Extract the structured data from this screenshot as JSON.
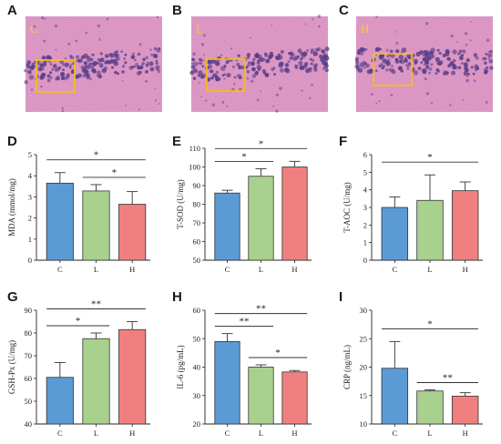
{
  "colors": {
    "C": "#5b9bd5",
    "L": "#a9d18e",
    "H": "#f08080",
    "box": "#f5c400",
    "tissue": "#d98fbe"
  },
  "histology": [
    {
      "panel": "A",
      "label": "C"
    },
    {
      "panel": "B",
      "label": "L"
    },
    {
      "panel": "C",
      "label": "H"
    }
  ],
  "chart_data": [
    {
      "panel": "D",
      "type": "bar",
      "ylabel": "MDA (mmol/mg)",
      "categories": [
        "C",
        "L",
        "H"
      ],
      "values": [
        3.65,
        3.28,
        2.65
      ],
      "errors": [
        0.5,
        0.3,
        0.6
      ],
      "ylim": [
        0,
        5
      ],
      "yticks": [
        0,
        1,
        2,
        3,
        4,
        5
      ],
      "sig": [
        {
          "from": 0,
          "to": 2,
          "text": "*"
        },
        {
          "from": 1,
          "to": 2,
          "text": "*"
        }
      ]
    },
    {
      "panel": "E",
      "type": "bar",
      "ylabel": "T-SOD (U/mg)",
      "categories": [
        "C",
        "L",
        "H"
      ],
      "values": [
        86,
        95,
        100
      ],
      "errors": [
        1.5,
        4,
        3
      ],
      "ylim": [
        50,
        110
      ],
      "yticks": [
        50,
        60,
        70,
        80,
        90,
        100,
        110
      ],
      "sig": [
        {
          "from": 0,
          "to": 2,
          "text": "*"
        },
        {
          "from": 0,
          "to": 1,
          "text": "*"
        }
      ]
    },
    {
      "panel": "F",
      "type": "bar",
      "ylabel": "T-AOC (U/mg)",
      "categories": [
        "C",
        "L",
        "H"
      ],
      "values": [
        3.0,
        3.4,
        3.95
      ],
      "errors": [
        0.6,
        1.45,
        0.5
      ],
      "ylim": [
        0,
        6
      ],
      "yticks": [
        0,
        1,
        2,
        3,
        4,
        5,
        6
      ],
      "sig": [
        {
          "from": 0,
          "to": 2,
          "text": "*"
        }
      ]
    },
    {
      "panel": "G",
      "type": "bar",
      "ylabel": "GSH-Px (U/mg)",
      "categories": [
        "C",
        "L",
        "H"
      ],
      "values": [
        60.5,
        77.5,
        81.5
      ],
      "errors": [
        6.5,
        2.5,
        3.5
      ],
      "ylim": [
        40,
        90
      ],
      "yticks": [
        40,
        50,
        60,
        70,
        80,
        90
      ],
      "sig": [
        {
          "from": 0,
          "to": 2,
          "text": "**"
        },
        {
          "from": 0,
          "to": 1,
          "text": "*"
        }
      ]
    },
    {
      "panel": "H",
      "type": "bar",
      "ylabel": "IL-6 (pg/mL)",
      "categories": [
        "C",
        "L",
        "H"
      ],
      "values": [
        49,
        40,
        38.3
      ],
      "errors": [
        2.8,
        0.8,
        0.5
      ],
      "ylim": [
        20,
        60
      ],
      "yticks": [
        20,
        30,
        40,
        50,
        60
      ],
      "sig": [
        {
          "from": 0,
          "to": 2,
          "text": "**"
        },
        {
          "from": 0,
          "to": 1,
          "text": "**"
        },
        {
          "from": 1,
          "to": 2,
          "text": "*"
        }
      ]
    },
    {
      "panel": "I",
      "type": "bar",
      "ylabel": "CRP (ng/mL)",
      "categories": [
        "C",
        "L",
        "H"
      ],
      "values": [
        19.8,
        15.8,
        14.9
      ],
      "errors": [
        4.7,
        0.2,
        0.6
      ],
      "ylim": [
        10,
        30
      ],
      "yticks": [
        10,
        15,
        20,
        25,
        30
      ],
      "sig": [
        {
          "from": 0,
          "to": 2,
          "text": "*"
        },
        {
          "from": 1,
          "to": 2,
          "text": "**"
        }
      ]
    }
  ]
}
